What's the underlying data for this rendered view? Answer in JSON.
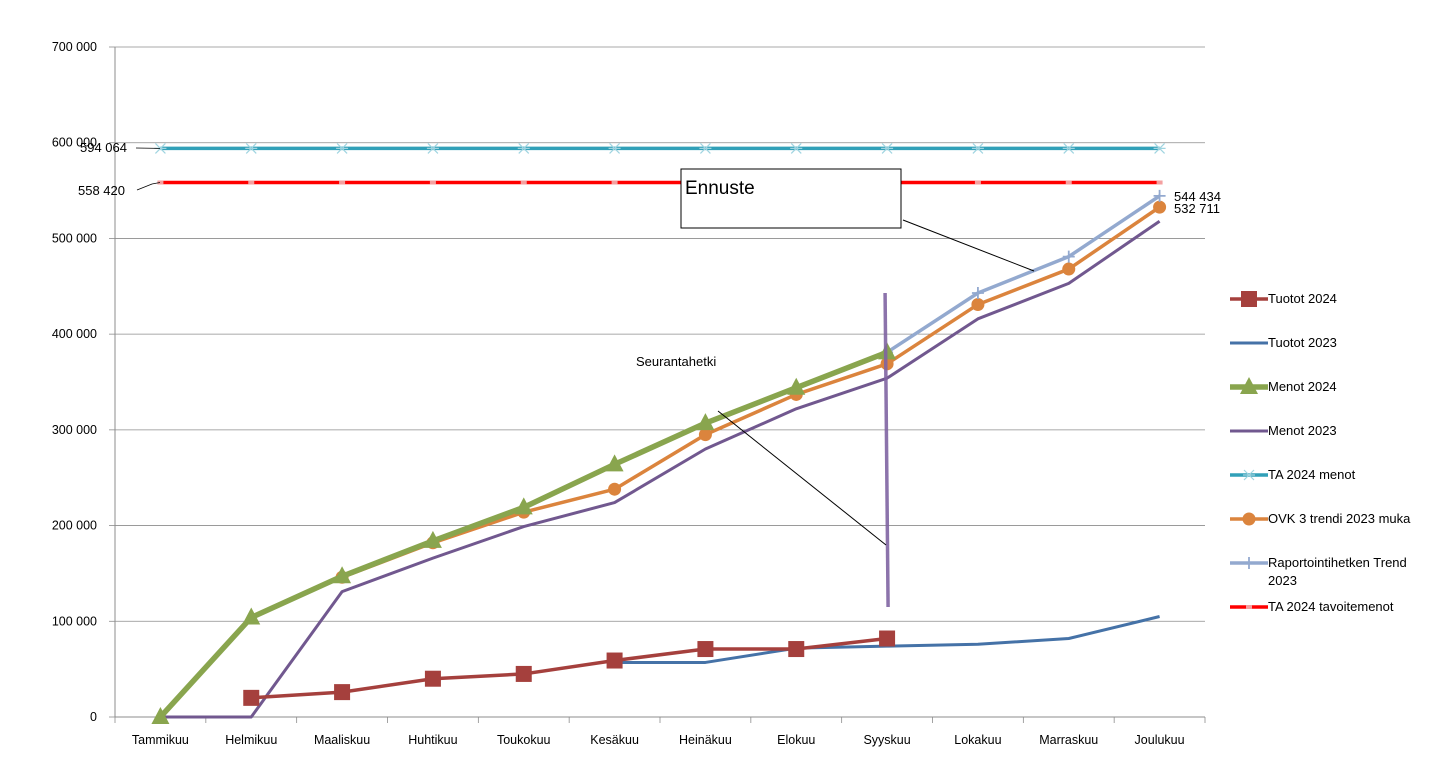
{
  "chart_data": {
    "type": "line",
    "title": "",
    "xlabel": "",
    "ylabel": "",
    "ylim": [
      0,
      700000
    ],
    "yticks": [
      0,
      100000,
      200000,
      300000,
      400000,
      500000,
      600000,
      700000
    ],
    "ytick_labels": [
      "0",
      "100 000",
      "200 000",
      "300 000",
      "400 000",
      "500 000",
      "600 000",
      "700 000"
    ],
    "grid": true,
    "legend_position": "right",
    "categories": [
      "Tammikuu",
      "Helmikuu",
      "Maaliskuu",
      "Huhtikuu",
      "Toukokuu",
      "Kesäkuu",
      "Heinäkuu",
      "Elokuu",
      "Syyskuu",
      "Lokakuu",
      "Marraskuu",
      "Joulukuu"
    ],
    "series": [
      {
        "name": "Tuotot 2024",
        "color": "#A5403D",
        "marker": "square",
        "values": [
          null,
          20000,
          26000,
          40000,
          45000,
          59000,
          71000,
          71000,
          82000,
          null,
          null,
          null
        ]
      },
      {
        "name": "Tuotot 2023",
        "color": "#4572A7",
        "marker": "none",
        "values": [
          null,
          null,
          null,
          null,
          null,
          57000,
          57000,
          72000,
          74000,
          76000,
          82000,
          105000
        ]
      },
      {
        "name": "Menot 2024",
        "color": "#89A54E",
        "marker": "triangle",
        "values": [
          0,
          104000,
          147000,
          184000,
          219000,
          264000,
          307000,
          344000,
          381000,
          null,
          null,
          null
        ]
      },
      {
        "name": "Menot 2023",
        "color": "#71588F",
        "marker": "none",
        "values": [
          0,
          0,
          131000,
          166000,
          199000,
          224000,
          280000,
          322000,
          354000,
          416000,
          453000,
          518000
        ]
      },
      {
        "name": "TA 2024 menot",
        "color": "#31A0B8",
        "marker": "star",
        "values": [
          594064,
          594064,
          594064,
          594064,
          594064,
          594064,
          594064,
          594064,
          594064,
          594064,
          594064,
          594064
        ]
      },
      {
        "name": "OVK 3 trendi 2023 muka",
        "color": "#DB843D",
        "marker": "circle",
        "values": [
          null,
          null,
          146000,
          182000,
          214000,
          238000,
          295000,
          337000,
          369000,
          431000,
          468000,
          532711
        ]
      },
      {
        "name": "Raportointihetken Trend 2023",
        "color": "#93A9CF",
        "marker": "plus",
        "values": [
          null,
          null,
          null,
          null,
          null,
          null,
          null,
          null,
          381000,
          443000,
          481000,
          544434
        ]
      },
      {
        "name": "TA 2024 tavoitemenot",
        "color": "#FF0000",
        "marker": "dash",
        "values": [
          558420,
          558420,
          558420,
          558420,
          558420,
          558420,
          558420,
          558420,
          558420,
          558420,
          558420,
          558420
        ]
      }
    ],
    "legend_labels": [
      [
        "Tuotot 2024"
      ],
      [
        "Tuotot 2023"
      ],
      [
        "Menot 2024"
      ],
      [
        "Menot 2023"
      ],
      [
        "TA 2024 menot"
      ],
      [
        "OVK 3 trendi 2023 muka"
      ],
      [
        "Raportointihetken Trend",
        "2023"
      ],
      [
        "TA 2024 tavoitemenot"
      ]
    ],
    "data_labels": [
      {
        "text": "594 064",
        "value": 594064
      },
      {
        "text": "558 420",
        "value": 558420
      },
      {
        "text": "544 434",
        "value": 544434
      },
      {
        "text": "532 711",
        "value": 532711
      }
    ],
    "annotations": [
      {
        "text": "Ennuste",
        "kind": "box"
      },
      {
        "text": "Seurantahetki",
        "kind": "label"
      }
    ],
    "tracking_month": "Syyskuu",
    "tracking_line_color": "#8064A2"
  }
}
